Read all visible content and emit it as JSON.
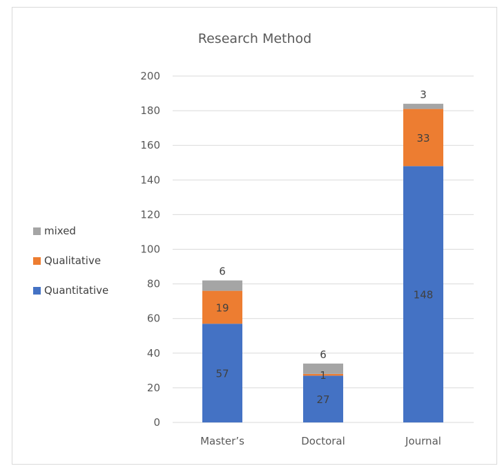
{
  "chart_data": {
    "type": "bar",
    "stacked": true,
    "title": "Research Method",
    "categories": [
      "Master's",
      "Doctoral",
      "Journal"
    ],
    "category_labels": [
      "Master’s",
      "Doctoral",
      "Journal"
    ],
    "series": [
      {
        "name": "Quantitative",
        "values": [
          57,
          27,
          148
        ],
        "color": "#4472C4"
      },
      {
        "name": "Qualitative",
        "values": [
          19,
          1,
          33
        ],
        "color": "#ED7D31"
      },
      {
        "name": "mixed",
        "values": [
          6,
          6,
          3
        ],
        "color": "#A5A5A5"
      }
    ],
    "ylim": [
      0,
      200
    ],
    "yticks": [
      0,
      20,
      40,
      60,
      80,
      100,
      120,
      140,
      160,
      180,
      200
    ],
    "grid": true,
    "legend_position": "left"
  }
}
